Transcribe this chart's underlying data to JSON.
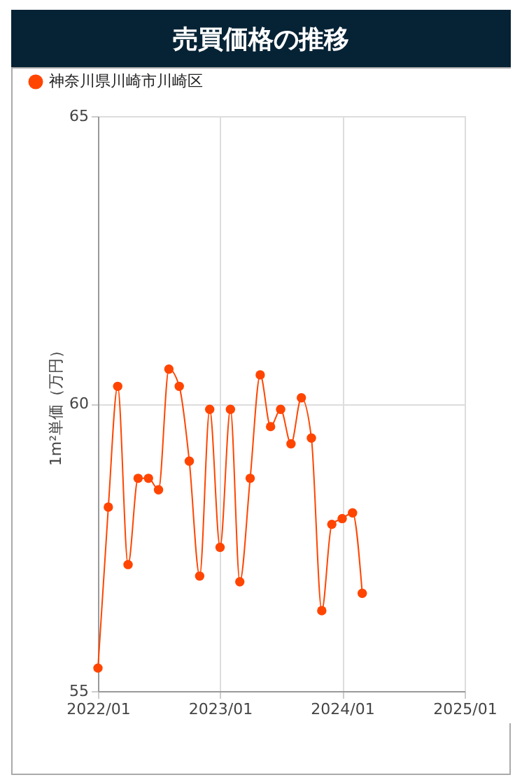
{
  "chart_data": {
    "type": "line",
    "title": "売買価格の推移",
    "ylabel": "1m²単価（万円）",
    "x": [
      "2022-01",
      "2022-02",
      "2022-03",
      "2022-04",
      "2022-05",
      "2022-06",
      "2022-07",
      "2022-08",
      "2022-09",
      "2022-10",
      "2022-11",
      "2022-12",
      "2023-01",
      "2023-02",
      "2023-03",
      "2023-04",
      "2023-05",
      "2023-06",
      "2023-07",
      "2023-08",
      "2023-09",
      "2023-10",
      "2023-11",
      "2023-12",
      "2024-01",
      "2024-02",
      "2024-03"
    ],
    "series": [
      {
        "name": "神奈川県川崎市川崎区",
        "color": "#ff4500",
        "values": [
          55.4,
          58.2,
          60.3,
          57.2,
          58.7,
          58.7,
          58.5,
          60.6,
          60.3,
          59.0,
          57.0,
          59.9,
          57.5,
          59.9,
          56.9,
          58.7,
          60.5,
          59.6,
          59.9,
          59.3,
          60.1,
          59.4,
          56.4,
          57.9,
          58.0,
          58.1,
          56.7
        ]
      }
    ],
    "xlim": [
      "2022-01",
      "2025-01"
    ],
    "xticks": [
      {
        "value": "2022-01",
        "label": "2022/01"
      },
      {
        "value": "2023-01",
        "label": "2023/01"
      },
      {
        "value": "2024-01",
        "label": "2024/01"
      },
      {
        "value": "2025-01",
        "label": "2025/01"
      }
    ],
    "ylim": [
      55,
      65
    ],
    "yticks": [
      55,
      60,
      65
    ],
    "grid": true,
    "legend": "top left",
    "marker": "circle",
    "line_style": "solid"
  }
}
